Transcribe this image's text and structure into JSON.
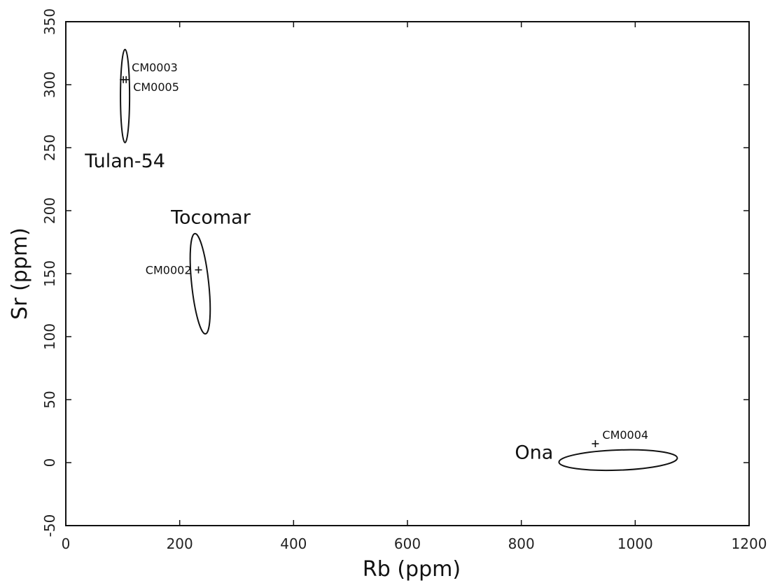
{
  "chart_data": {
    "type": "scatter",
    "xlabel": "Rb (ppm)",
    "ylabel": "Sr (ppm)",
    "xlim": [
      0,
      1200
    ],
    "ylim": [
      -50,
      350
    ],
    "xticks": [
      0,
      200,
      400,
      600,
      800,
      1000,
      1200
    ],
    "yticks": [
      -50,
      0,
      50,
      100,
      150,
      200,
      250,
      300,
      350
    ],
    "grid": false,
    "points": [
      {
        "label": "CM0003",
        "x": 101,
        "y": 304
      },
      {
        "label": "CM0005",
        "x": 106,
        "y": 304
      },
      {
        "label": "CM0002",
        "x": 233,
        "y": 153
      },
      {
        "label": "CM0004",
        "x": 930,
        "y": 15
      }
    ],
    "ellipses": [
      {
        "label": "Tulan-54",
        "center": [
          104,
          291
        ],
        "semi_axis_x": 8,
        "semi_axis_y": 37,
        "rotation_deg": 0
      },
      {
        "label": "Tocomar",
        "center": [
          236,
          142
        ],
        "semi_axis_x": 15,
        "semi_axis_y": 40,
        "rotation_deg": -6
      },
      {
        "label": "Ona",
        "center": [
          970,
          2
        ],
        "semi_axis_x": 104,
        "semi_axis_y": 8,
        "rotation_deg": -2
      }
    ]
  }
}
